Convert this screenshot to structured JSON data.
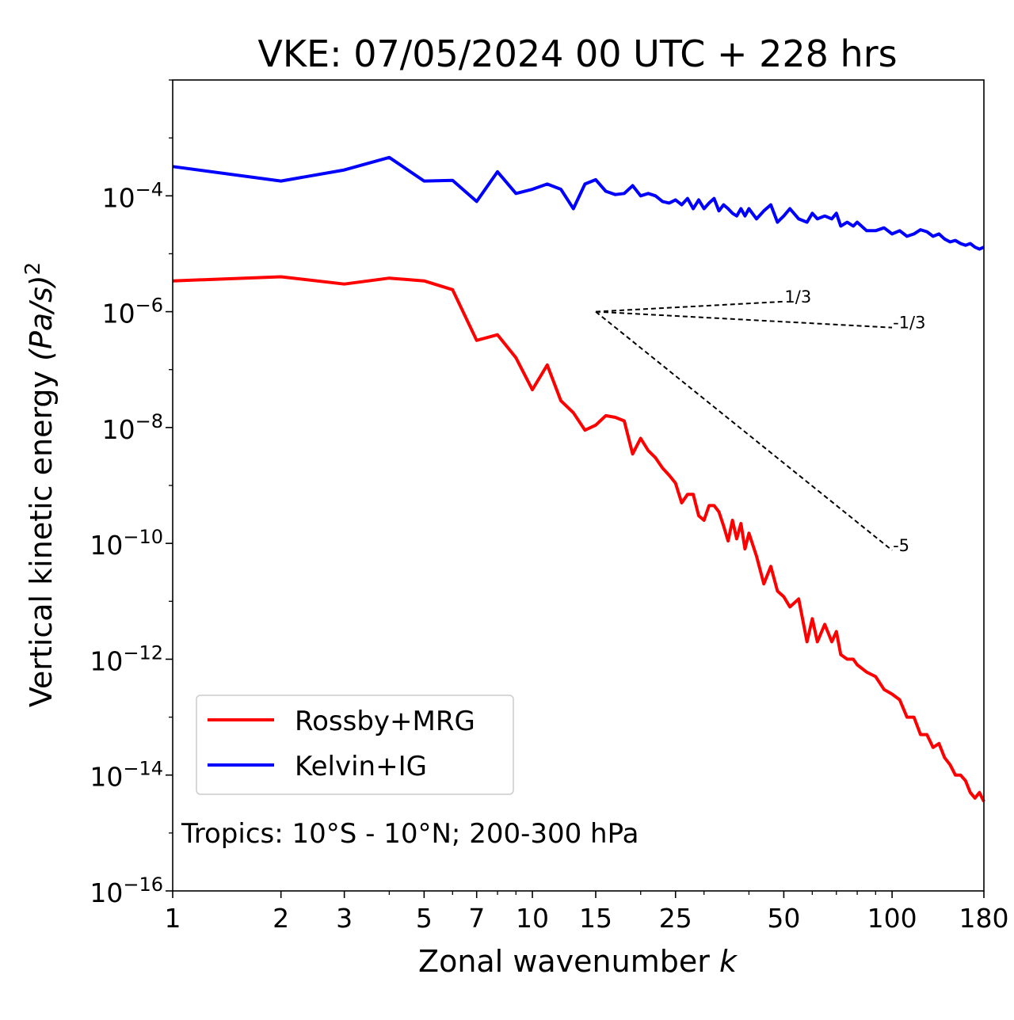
{
  "chart_data": {
    "type": "line",
    "title": "VKE: 07/05/2024 00 UTC + 228 hrs",
    "xlabel": "Zonal wavenumber",
    "xlabel_italic": "k",
    "ylabel": "Vertical kinetic energy",
    "ylabel_unit": "(Pa/s)",
    "ylabel_unit_power": "2",
    "xscale": "log",
    "yscale": "log",
    "xlim": [
      1,
      180
    ],
    "ylim": [
      1e-16,
      0.01
    ],
    "x_ticks": [
      1,
      2,
      3,
      5,
      7,
      10,
      15,
      25,
      50,
      100,
      180
    ],
    "y_ticks": [
      {
        "value": 0.0001,
        "base": "10",
        "exp": "−4"
      },
      {
        "value": 1e-06,
        "base": "10",
        "exp": "−6"
      },
      {
        "value": 1e-08,
        "base": "10",
        "exp": "−8"
      },
      {
        "value": 1e-10,
        "base": "10",
        "exp": "−10"
      },
      {
        "value": 1e-12,
        "base": "10",
        "exp": "−12"
      },
      {
        "value": 1e-14,
        "base": "10",
        "exp": "−14"
      },
      {
        "value": 1e-16,
        "base": "10",
        "exp": "−16"
      }
    ],
    "annotation": "Tropics: 10°S - 10°N; 200-300 hPa",
    "legend_position": "lower-left",
    "series": [
      {
        "name": "Rossby+MRG",
        "color": "#ff0000",
        "x": [
          1,
          2,
          3,
          4,
          5,
          6,
          7,
          8,
          9,
          10,
          11,
          12,
          13,
          14,
          15,
          16,
          17,
          18,
          19,
          20,
          21,
          22,
          23,
          24,
          25,
          26,
          27,
          28,
          29,
          30,
          31,
          32,
          33,
          34,
          35,
          36,
          37,
          38,
          39,
          40,
          42,
          44,
          46,
          48,
          50,
          52,
          55,
          58,
          60,
          62,
          65,
          68,
          70,
          72,
          75,
          78,
          80,
          85,
          90,
          95,
          100,
          105,
          110,
          115,
          120,
          125,
          130,
          135,
          140,
          145,
          150,
          155,
          160,
          165,
          170,
          175,
          180
        ],
        "values": [
          3.4e-06,
          4e-06,
          3e-06,
          3.8e-06,
          3.4e-06,
          2.4e-06,
          3.2e-07,
          4e-07,
          1.6e-07,
          4.5e-08,
          1.2e-07,
          2.9e-08,
          1.8e-08,
          9e-09,
          1.1e-08,
          1.6e-08,
          1.5e-08,
          1.3e-08,
          3.5e-09,
          6.5e-09,
          4e-09,
          3e-09,
          2e-09,
          1.5e-09,
          1.1e-09,
          5e-10,
          7e-10,
          7e-10,
          3e-10,
          2.5e-10,
          4.5e-10,
          4.5e-10,
          3.5e-10,
          2e-10,
          1.1e-10,
          2.5e-10,
          1.2e-10,
          2.2e-10,
          8e-11,
          1.5e-10,
          6e-11,
          2e-11,
          4e-11,
          1.5e-11,
          1.2e-11,
          8e-12,
          1.1e-11,
          2e-12,
          5e-12,
          2e-12,
          4e-12,
          2e-12,
          3e-12,
          1.2e-12,
          1e-12,
          1e-12,
          8e-13,
          6e-13,
          5e-13,
          3e-13,
          2.5e-13,
          2e-13,
          1e-13,
          1e-13,
          5e-14,
          5e-14,
          3e-14,
          3.5e-14,
          2e-14,
          1.5e-14,
          1e-14,
          1e-14,
          8e-15,
          5e-15,
          4e-15,
          5e-15,
          3.5e-15
        ]
      },
      {
        "name": "Kelvin+IG",
        "color": "#0000ff",
        "x": [
          1,
          2,
          3,
          4,
          5,
          6,
          7,
          8,
          9,
          10,
          11,
          12,
          13,
          14,
          15,
          16,
          17,
          18,
          19,
          20,
          21,
          22,
          23,
          24,
          25,
          26,
          27,
          28,
          29,
          30,
          31,
          32,
          33,
          34,
          35,
          36,
          37,
          38,
          39,
          40,
          42,
          44,
          46,
          48,
          50,
          52,
          55,
          58,
          60,
          62,
          65,
          68,
          70,
          72,
          75,
          78,
          80,
          85,
          90,
          95,
          100,
          105,
          110,
          115,
          120,
          125,
          130,
          135,
          140,
          145,
          150,
          155,
          160,
          165,
          170,
          175,
          180
        ],
        "values": [
          0.00032,
          0.00018,
          0.00028,
          0.00046,
          0.00018,
          0.000185,
          8e-05,
          0.00026,
          0.00011,
          0.00013,
          0.00016,
          0.00013,
          6e-05,
          0.00016,
          0.00019,
          0.00012,
          0.000105,
          0.00011,
          0.00015,
          0.0001,
          0.00011,
          0.0001,
          8e-05,
          7.5e-05,
          8.5e-05,
          7e-05,
          9e-05,
          6e-05,
          8.5e-05,
          6e-05,
          7.5e-05,
          9e-05,
          5.5e-05,
          7e-05,
          6e-05,
          5e-05,
          4.5e-05,
          6e-05,
          4.5e-05,
          6e-05,
          4e-05,
          5.5e-05,
          7e-05,
          3.5e-05,
          4.5e-05,
          6e-05,
          4e-05,
          3.5e-05,
          5e-05,
          4e-05,
          4.5e-05,
          4e-05,
          5e-05,
          3e-05,
          3.5e-05,
          3e-05,
          3.5e-05,
          2.5e-05,
          2.5e-05,
          2.8e-05,
          2.2e-05,
          2.5e-05,
          2e-05,
          2.2e-05,
          2.6e-05,
          2.4e-05,
          2e-05,
          2.2e-05,
          1.8e-05,
          1.6e-05,
          1.7e-05,
          1.5e-05,
          1.4e-05,
          1.5e-05,
          1.3e-05,
          1.2e-05,
          1.3e-05
        ]
      }
    ],
    "reference_slopes": [
      {
        "label": "1/3",
        "exponent": 0.3333,
        "x_start": 15,
        "x_end": 50,
        "y_start": 1e-06
      },
      {
        "label": "-1/3",
        "exponent": -0.3333,
        "x_start": 15,
        "x_end": 100,
        "y_start": 1e-06
      },
      {
        "label": "-5",
        "exponent": -5,
        "x_start": 15,
        "x_end": 100,
        "y_start": 1e-06
      }
    ]
  }
}
